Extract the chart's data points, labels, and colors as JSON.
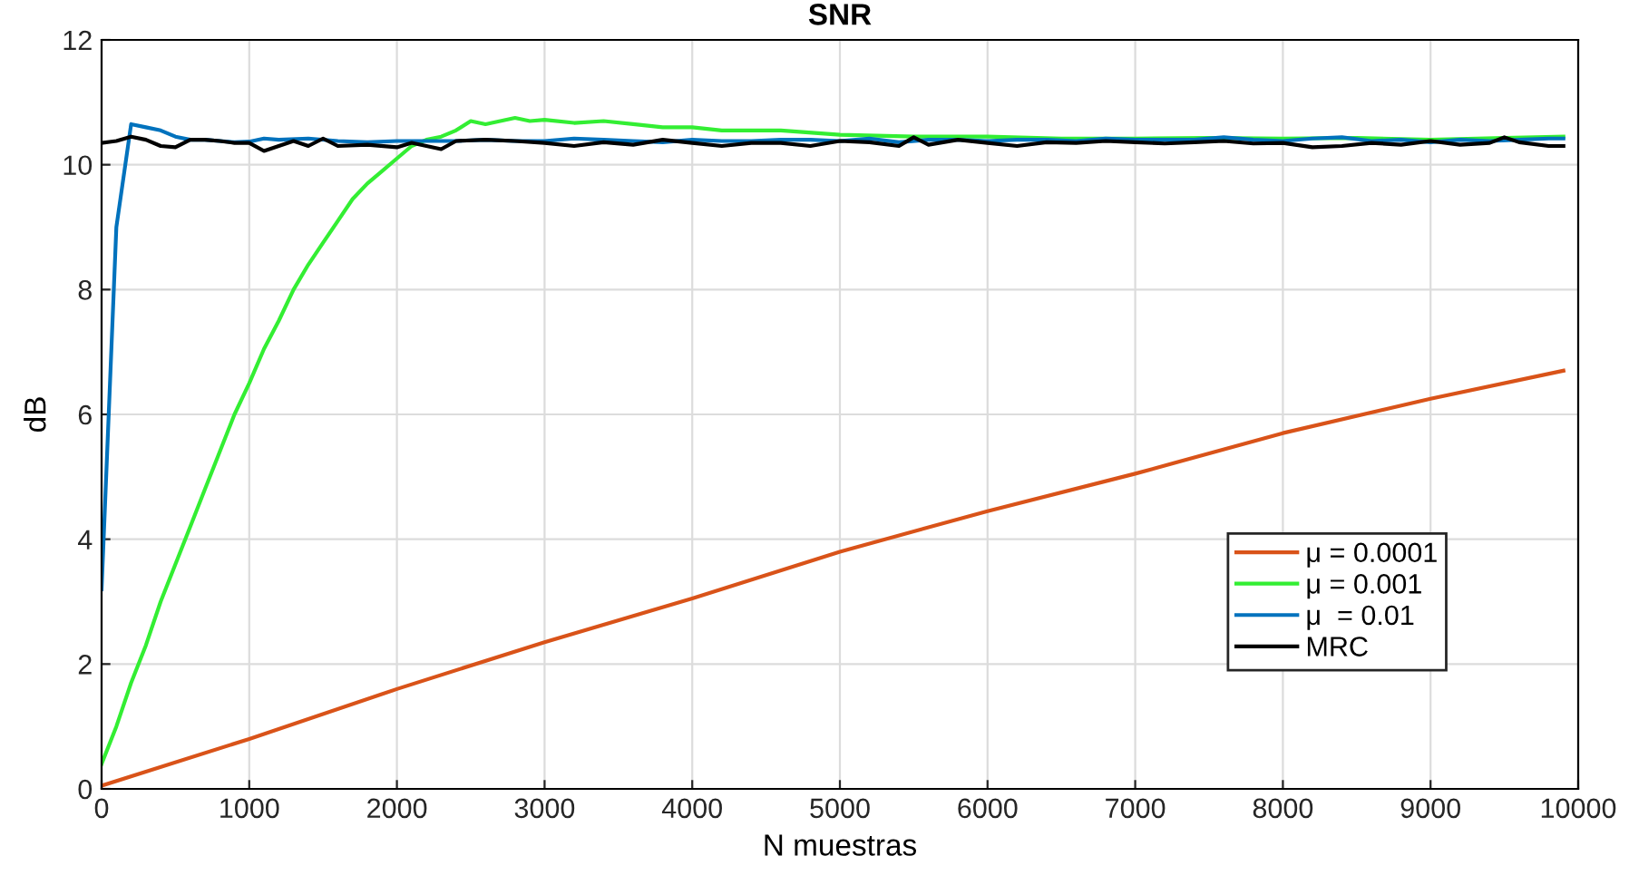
{
  "chart_data": {
    "type": "line",
    "title": "SNR",
    "xlabel": "N muestras",
    "ylabel": "dB",
    "xlim": [
      0,
      10000
    ],
    "xticks": [
      0,
      1000,
      2000,
      3000,
      4000,
      5000,
      6000,
      7000,
      8000,
      9000,
      10000
    ],
    "ylim": [
      0,
      12
    ],
    "yticks": [
      0,
      2,
      4,
      6,
      8,
      10,
      12
    ],
    "grid": true,
    "legend": "lower right",
    "marker": "none",
    "line_style": "solid",
    "series": [
      {
        "name": "μ = 0.0001",
        "color": "#d95319",
        "x": [
          0,
          1000,
          2000,
          3000,
          4000,
          5000,
          6000,
          7000,
          8000,
          9000,
          9900
        ],
        "values": [
          0.05,
          0.8,
          1.6,
          2.35,
          3.05,
          3.8,
          4.45,
          5.05,
          5.7,
          6.25,
          6.7
        ]
      },
      {
        "name": "μ = 0.001",
        "color": "#33ee33",
        "x": [
          0,
          100,
          200,
          300,
          400,
          500,
          600,
          700,
          800,
          900,
          1000,
          1100,
          1200,
          1300,
          1400,
          1500,
          1600,
          1700,
          1800,
          1900,
          2000,
          2100,
          2200,
          2300,
          2400,
          2500,
          2600,
          2700,
          2800,
          2900,
          3000,
          3200,
          3400,
          3600,
          3800,
          4000,
          4200,
          4600,
          5000,
          5500,
          6000,
          6500,
          7000,
          7500,
          8000,
          8500,
          9000,
          9500,
          9900
        ],
        "values": [
          0.4,
          1.0,
          1.7,
          2.3,
          3.0,
          3.6,
          4.2,
          4.8,
          5.4,
          6.0,
          6.5,
          7.05,
          7.5,
          8.0,
          8.4,
          8.75,
          9.1,
          9.45,
          9.7,
          9.9,
          10.1,
          10.3,
          10.4,
          10.45,
          10.55,
          10.7,
          10.65,
          10.7,
          10.75,
          10.7,
          10.72,
          10.67,
          10.7,
          10.65,
          10.6,
          10.6,
          10.55,
          10.55,
          10.48,
          10.45,
          10.45,
          10.42,
          10.42,
          10.43,
          10.42,
          10.43,
          10.4,
          10.43,
          10.45
        ]
      },
      {
        "name": "μ  = 0.01",
        "color": "#0072bd",
        "x": [
          0,
          100,
          200,
          300,
          400,
          500,
          600,
          700,
          800,
          900,
          1000,
          1100,
          1200,
          1400,
          1600,
          1800,
          2000,
          2200,
          2400,
          2600,
          2800,
          3000,
          3200,
          3400,
          3600,
          3800,
          4000,
          4200,
          4400,
          4600,
          4800,
          5000,
          5200,
          5400,
          5600,
          5800,
          6000,
          6200,
          6400,
          6600,
          6800,
          7000,
          7200,
          7400,
          7600,
          7800,
          8000,
          8200,
          8400,
          8600,
          8800,
          9000,
          9200,
          9400,
          9600,
          9800,
          9900
        ],
        "values": [
          3.2,
          9.0,
          10.65,
          10.6,
          10.55,
          10.45,
          10.4,
          10.4,
          10.38,
          10.36,
          10.37,
          10.42,
          10.4,
          10.42,
          10.38,
          10.36,
          10.38,
          10.38,
          10.38,
          10.4,
          10.38,
          10.38,
          10.42,
          10.4,
          10.38,
          10.36,
          10.4,
          10.38,
          10.38,
          10.4,
          10.4,
          10.38,
          10.42,
          10.36,
          10.4,
          10.4,
          10.38,
          10.4,
          10.4,
          10.38,
          10.42,
          10.4,
          10.4,
          10.4,
          10.44,
          10.4,
          10.38,
          10.42,
          10.44,
          10.38,
          10.4,
          10.36,
          10.4,
          10.38,
          10.4,
          10.42,
          10.42
        ]
      },
      {
        "name": "MRC",
        "color": "#000000",
        "x": [
          0,
          100,
          200,
          300,
          400,
          500,
          600,
          700,
          800,
          900,
          1000,
          1100,
          1200,
          1300,
          1400,
          1500,
          1600,
          1800,
          2000,
          2100,
          2300,
          2400,
          2600,
          2800,
          3000,
          3200,
          3400,
          3600,
          3800,
          4000,
          4200,
          4400,
          4600,
          4800,
          5000,
          5200,
          5400,
          5500,
          5600,
          5800,
          6000,
          6200,
          6400,
          6600,
          6800,
          7000,
          7200,
          7400,
          7600,
          7800,
          8000,
          8200,
          8400,
          8600,
          8800,
          9000,
          9200,
          9400,
          9500,
          9600,
          9800,
          9900
        ],
        "values": [
          10.35,
          10.38,
          10.45,
          10.4,
          10.3,
          10.28,
          10.4,
          10.4,
          10.38,
          10.35,
          10.35,
          10.22,
          10.3,
          10.38,
          10.3,
          10.42,
          10.3,
          10.32,
          10.28,
          10.35,
          10.25,
          10.38,
          10.4,
          10.38,
          10.35,
          10.3,
          10.36,
          10.32,
          10.4,
          10.35,
          10.3,
          10.35,
          10.35,
          10.3,
          10.38,
          10.36,
          10.3,
          10.44,
          10.32,
          10.4,
          10.35,
          10.3,
          10.36,
          10.35,
          10.38,
          10.36,
          10.34,
          10.36,
          10.38,
          10.34,
          10.35,
          10.28,
          10.3,
          10.35,
          10.32,
          10.38,
          10.32,
          10.35,
          10.44,
          10.36,
          10.3,
          10.3
        ]
      }
    ]
  }
}
